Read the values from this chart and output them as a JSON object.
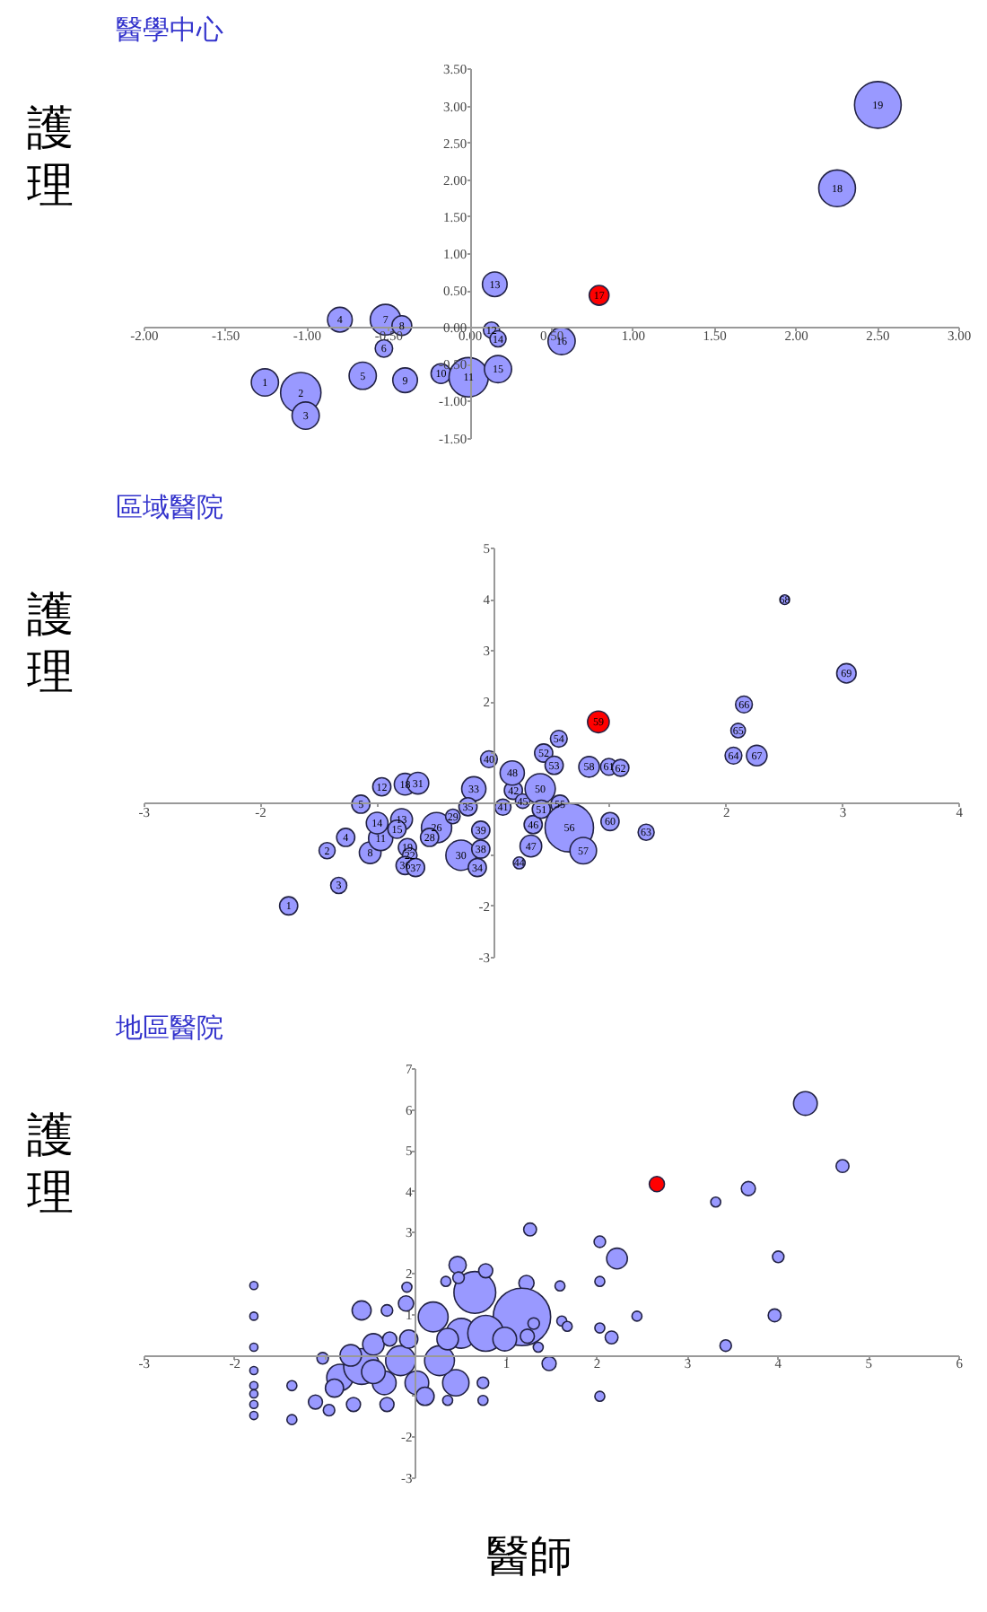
{
  "chart_data": [
    {
      "type": "bubble",
      "title": "醫學中心",
      "ylabel": "護理",
      "marker": "circle",
      "grid": false,
      "xlim": [
        -2,
        3
      ],
      "ylim": [
        -1.5,
        3.5
      ],
      "xticks": [
        {
          "value": -2,
          "label": "-2.00"
        },
        {
          "value": -1.5,
          "label": "-1.50"
        },
        {
          "value": -1,
          "label": "-1.00"
        },
        {
          "value": -0.5,
          "label": "-0.50"
        },
        {
          "value": 0,
          "label": "0.00"
        },
        {
          "value": 0.5,
          "label": "0.50"
        },
        {
          "value": 1,
          "label": "1.00"
        },
        {
          "value": 1.5,
          "label": "1.50"
        },
        {
          "value": 2,
          "label": "2.00"
        },
        {
          "value": 2.5,
          "label": "2.50"
        },
        {
          "value": 3,
          "label": "3.00"
        }
      ],
      "yticks": [
        {
          "value": -1.5,
          "label": "-1.50"
        },
        {
          "value": -1,
          "label": "-1.00"
        },
        {
          "value": -0.5,
          "label": "-0.50"
        },
        {
          "value": 0,
          "label": "0.00"
        },
        {
          "value": 0.5,
          "label": "0.50"
        },
        {
          "value": 1,
          "label": "1.00"
        },
        {
          "value": 1.5,
          "label": "1.50"
        },
        {
          "value": 2,
          "label": "2.00"
        },
        {
          "value": 2.5,
          "label": "2.50"
        },
        {
          "value": 3,
          "label": "3.00"
        },
        {
          "value": 3.5,
          "label": "3.50"
        }
      ],
      "series": [
        {
          "color": "#9999ff",
          "x": [
            -1.26,
            -1.04,
            -1.01,
            -0.8,
            -0.66,
            -0.53,
            -0.52,
            -0.42,
            -0.4,
            -0.18,
            -0.01,
            0.13,
            0.15,
            0.17,
            0.17,
            0.56,
            2.25,
            2.5
          ],
          "values": [
            -0.74,
            -0.88,
            -1.19,
            0.11,
            -0.65,
            -0.28,
            0.11,
            0.03,
            -0.71,
            -0.62,
            -0.67,
            -0.03,
            0.59,
            -0.15,
            -0.56,
            -0.18,
            1.89,
            3.02
          ],
          "sizes": [
            0.34,
            0.75,
            0.34,
            0.28,
            0.34,
            0.14,
            0.43,
            0.18,
            0.28,
            0.18,
            0.71,
            0.12,
            0.28,
            0.12,
            0.34,
            0.34,
            0.62,
            1
          ]
        },
        {
          "color": "#ff0000",
          "x": [
            0.79
          ],
          "values": [
            0.44
          ],
          "sizes": [
            0.18
          ]
        }
      ],
      "annotations": [
        {
          "text": "1",
          "x": -1.26,
          "y": -0.74
        },
        {
          "text": "2",
          "x": -1.04,
          "y": -0.88
        },
        {
          "text": "3",
          "x": -1.01,
          "y": -1.19
        },
        {
          "text": "4",
          "x": -0.8,
          "y": 0.11
        },
        {
          "text": "5",
          "x": -0.66,
          "y": -0.65
        },
        {
          "text": "6",
          "x": -0.53,
          "y": -0.28
        },
        {
          "text": "7",
          "x": -0.52,
          "y": 0.11
        },
        {
          "text": "8",
          "x": -0.42,
          "y": 0.03
        },
        {
          "text": "9",
          "x": -0.4,
          "y": -0.71
        },
        {
          "text": "10",
          "x": -0.18,
          "y": -0.62
        },
        {
          "text": "11",
          "x": -0.01,
          "y": -0.67
        },
        {
          "text": "12",
          "x": 0.13,
          "y": -0.03
        },
        {
          "text": "13",
          "x": 0.15,
          "y": 0.59
        },
        {
          "text": "14",
          "x": 0.17,
          "y": -0.15
        },
        {
          "text": "15",
          "x": 0.17,
          "y": -0.56
        },
        {
          "text": "16",
          "x": 0.56,
          "y": -0.18
        },
        {
          "text": "17",
          "x": 0.79,
          "y": 0.44
        },
        {
          "text": "18",
          "x": 2.25,
          "y": 1.89
        },
        {
          "text": "19",
          "x": 2.5,
          "y": 3.02
        }
      ]
    },
    {
      "type": "bubble",
      "title": "區域醫院",
      "ylabel": "護理",
      "marker": "circle",
      "grid": false,
      "xlim": [
        -3,
        4
      ],
      "ylim": [
        -3,
        5
      ],
      "xticks": [
        -3,
        -2,
        {
          "value": -1,
          "label": null
        },
        {
          "value": 0,
          "label": null
        },
        {
          "value": 1,
          "label": null
        },
        2,
        3,
        4
      ],
      "yticks": [
        -3,
        -2,
        {
          "value": -1,
          "label": null
        },
        {
          "value": 0,
          "label": null
        },
        {
          "value": 1,
          "label": null
        },
        2,
        3,
        4,
        5
      ],
      "series": [
        {
          "color": "#9999ff",
          "x": [
            -1.76,
            -1.43,
            -1.33,
            -1.27,
            -1.14,
            -1.06,
            -0.97,
            -0.96,
            -0.79,
            -1.0,
            -0.83,
            -0.76,
            -0.74,
            -0.72,
            -0.65,
            -0.76,
            -0.67,
            -0.49,
            -0.55,
            -0.35,
            -0.28,
            -0.17,
            -0.14,
            -0.22,
            -0.11,
            -0.11,
            -0.04,
            0.08,
            0.17,
            0.25,
            0.22,
            0.34,
            0.32,
            0.16,
            0.4,
            0.41,
            0.43,
            0.52,
            0.56,
            0.57,
            0.65,
            0.77,
            0.82,
            1.0,
            0.99,
            1.09,
            1.31,
            2.06,
            2.1,
            2.15,
            2.26,
            2.5,
            3.03
          ],
          "values": [
            -1.99,
            -0.91,
            -1.59,
            -0.65,
            0.0,
            -0.95,
            -0.67,
            0.34,
            -0.3,
            -0.37,
            -0.49,
            0.39,
            -0.85,
            -1.0,
            0.41,
            -1.2,
            -1.24,
            -0.46,
            -0.65,
            -0.24,
            -1.0,
            0.3,
            -1.24,
            -0.05,
            -0.88,
            -0.51,
            0.88,
            -0.06,
            0.27,
            0.06,
            -1.15,
            -0.4,
            -0.82,
            0.61,
            0.3,
            -0.1,
            1.0,
            0.76,
            1.28,
            0.0,
            -0.46,
            -0.91,
            0.73,
            -0.34,
            0.73,
            0.71,
            -0.55,
            0.95,
            1.44,
            1.95,
            0.95,
            4.0,
            2.56
          ],
          "sizes": [
            0.14,
            0.11,
            0.11,
            0.14,
            0.14,
            0.2,
            0.25,
            0.14,
            0.2,
            0.2,
            0.14,
            0.2,
            0.14,
            0.09,
            0.2,
            0.14,
            0.14,
            0.39,
            0.14,
            0.09,
            0.39,
            0.25,
            0.14,
            0.14,
            0.14,
            0.14,
            0.12,
            0.11,
            0.14,
            0.09,
            0.06,
            0.14,
            0.2,
            0.25,
            0.39,
            0.14,
            0.14,
            0.14,
            0.12,
            0.14,
            1,
            0.3,
            0.18,
            0.14,
            0.12,
            0.12,
            0.11,
            0.12,
            0.09,
            0.12,
            0.18,
            0.04,
            0.16
          ]
        },
        {
          "color": "#ff0000",
          "x": [
            0.9
          ],
          "values": [
            1.61
          ],
          "sizes": [
            0.2
          ]
        }
      ],
      "annotations": [
        {
          "text": "1",
          "x": -1.76,
          "y": -1.99
        },
        {
          "text": "2",
          "x": -1.43,
          "y": -0.91
        },
        {
          "text": "3",
          "x": -1.33,
          "y": -1.59
        },
        {
          "text": "4",
          "x": -1.27,
          "y": -0.65
        },
        {
          "text": "5",
          "x": -1.14,
          "y": 0.0
        },
        {
          "text": "8",
          "x": -1.06,
          "y": -0.95
        },
        {
          "text": "11",
          "x": -0.97,
          "y": -0.67
        },
        {
          "text": "12",
          "x": -0.96,
          "y": 0.34
        },
        {
          "text": "13",
          "x": -0.79,
          "y": -0.3
        },
        {
          "text": "14",
          "x": -1.0,
          "y": -0.37
        },
        {
          "text": "15",
          "x": -0.83,
          "y": -0.49
        },
        {
          "text": "18",
          "x": -0.76,
          "y": 0.39
        },
        {
          "text": "19",
          "x": -0.74,
          "y": -0.85
        },
        {
          "text": "22",
          "x": -0.72,
          "y": -1.0
        },
        {
          "text": "31",
          "x": -0.65,
          "y": 0.41
        },
        {
          "text": "36",
          "x": -0.76,
          "y": -1.2
        },
        {
          "text": "37",
          "x": -0.67,
          "y": -1.24
        },
        {
          "text": "26",
          "x": -0.49,
          "y": -0.46
        },
        {
          "text": "28",
          "x": -0.55,
          "y": -0.65
        },
        {
          "text": "29",
          "x": -0.35,
          "y": -0.24
        },
        {
          "text": "30",
          "x": -0.28,
          "y": -1.0
        },
        {
          "text": "33",
          "x": -0.17,
          "y": 0.3
        },
        {
          "text": "34",
          "x": -0.14,
          "y": -1.24
        },
        {
          "text": "35",
          "x": -0.22,
          "y": -0.05
        },
        {
          "text": "38",
          "x": -0.11,
          "y": -0.88
        },
        {
          "text": "39",
          "x": -0.11,
          "y": -0.51
        },
        {
          "text": "40",
          "x": -0.04,
          "y": 0.88
        },
        {
          "text": "41",
          "x": 0.08,
          "y": -0.06
        },
        {
          "text": "42",
          "x": 0.17,
          "y": 0.27
        },
        {
          "text": "45",
          "x": 0.25,
          "y": 0.06
        },
        {
          "text": "44",
          "x": 0.22,
          "y": -1.15
        },
        {
          "text": "46",
          "x": 0.34,
          "y": -0.4
        },
        {
          "text": "47",
          "x": 0.32,
          "y": -0.82
        },
        {
          "text": "48",
          "x": 0.16,
          "y": 0.61
        },
        {
          "text": "50",
          "x": 0.4,
          "y": 0.3
        },
        {
          "text": "51",
          "x": 0.41,
          "y": -0.1
        },
        {
          "text": "52",
          "x": 0.43,
          "y": 1.0
        },
        {
          "text": "53",
          "x": 0.52,
          "y": 0.76
        },
        {
          "text": "54",
          "x": 0.56,
          "y": 1.28
        },
        {
          "text": "55",
          "x": 0.57,
          "y": 0.0
        },
        {
          "text": "56",
          "x": 0.65,
          "y": -0.46
        },
        {
          "text": "57",
          "x": 0.77,
          "y": -0.91
        },
        {
          "text": "58",
          "x": 0.82,
          "y": 0.73
        },
        {
          "text": "59",
          "x": 0.9,
          "y": 1.61
        },
        {
          "text": "60",
          "x": 1.0,
          "y": -0.34
        },
        {
          "text": "61",
          "x": 0.99,
          "y": 0.73
        },
        {
          "text": "62",
          "x": 1.09,
          "y": 0.71
        },
        {
          "text": "63",
          "x": 1.31,
          "y": -0.55
        },
        {
          "text": "64",
          "x": 2.06,
          "y": 0.95
        },
        {
          "text": "65",
          "x": 2.1,
          "y": 1.44
        },
        {
          "text": "66",
          "x": 2.15,
          "y": 1.95
        },
        {
          "text": "67",
          "x": 2.26,
          "y": 0.95
        },
        {
          "text": "68",
          "x": 2.5,
          "y": 4.0
        },
        {
          "text": "69",
          "x": 3.03,
          "y": 2.56
        }
      ]
    },
    {
      "type": "bubble",
      "title": "地區醫院",
      "ylabel": "護理",
      "xlabel": "醫師",
      "marker": "circle",
      "grid": false,
      "xlim": [
        -3,
        6
      ],
      "ylim": [
        -3,
        7
      ],
      "xticks": [
        -3,
        -2,
        {
          "value": -1,
          "label": null
        },
        {
          "value": 0,
          "label": null
        },
        1,
        2,
        3,
        4,
        5,
        6
      ],
      "yticks": [
        -3,
        -2,
        {
          "value": -1,
          "label": null
        },
        {
          "value": 0,
          "label": null
        },
        1,
        2,
        3,
        4,
        5,
        6,
        7
      ],
      "series": [
        {
          "color": "#9999ff",
          "x": [
            4.3,
            4.71,
            3.67,
            3.31,
            1.26,
            2.03,
            2.22,
            4.0,
            3.96,
            3.42,
            2.44,
            2.03,
            2.03,
            2.16,
            2.03,
            1.59,
            1.61,
            1.67,
            1.47,
            1.22,
            1.17,
            0.65,
            0.77,
            0.46,
            0.47,
            0.33,
            -0.1,
            -0.6,
            -0.32,
            -0.11,
            0.19,
            0.5,
            0.77,
            0.44,
            0.74,
            0.35,
            0.74,
            1.35,
            -1.79,
            -1.79,
            -1.79,
            -1.79,
            -1.79,
            -1.79,
            -1.79,
            -1.79,
            -1.37,
            -1.37,
            -1.03,
            -1.11,
            -0.96,
            -0.84,
            -0.69,
            -0.6,
            -0.47,
            -0.35,
            -0.32,
            -0.17,
            -0.08,
            0.01,
            0.1,
            0.26,
            -0.72,
            -0.9,
            -0.29,
            -0.47,
            0.35,
            0.98,
            1.23,
            1.3
          ],
          "values": [
            6.16,
            4.63,
            4.08,
            3.75,
            3.08,
            2.78,
            2.37,
            2.41,
            0.98,
            0.24,
            0.96,
            1.81,
            0.67,
            0.44,
            -1.0,
            1.7,
            0.84,
            0.71,
            -0.2,
            1.77,
            0.94,
            1.54,
            2.07,
            2.21,
            1.9,
            1.81,
            1.67,
            1.1,
            1.1,
            1.27,
            0.94,
            0.54,
            0.54,
            -0.67,
            -0.67,
            -1.1,
            -1.1,
            0.2,
            1.71,
            0.96,
            0.2,
            -0.37,
            -0.74,
            -0.94,
            -1.2,
            -1.47,
            -0.74,
            -1.57,
            -0.07,
            -1.14,
            -1.34,
            -0.54,
            -1.2,
            -0.27,
            0.27,
            -0.67,
            -1.2,
            -0.13,
            0.4,
            -0.67,
            -1.0,
            -0.13,
            0.0,
            -0.8,
            0.4,
            -0.4,
            0.4,
            0.4,
            0.47,
            0.78
          ],
          "sizes": [
            0.17,
            0.05,
            0.06,
            0.03,
            0.05,
            0.04,
            0.13,
            0.04,
            0.05,
            0.04,
            0.03,
            0.03,
            0.03,
            0.05,
            0.03,
            0.03,
            0.03,
            0.03,
            0.06,
            0.07,
            1,
            0.53,
            0.06,
            0.09,
            0.04,
            0.03,
            0.03,
            0.11,
            0.04,
            0.07,
            0.27,
            0.27,
            0.39,
            0.21,
            0.04,
            0.03,
            0.03,
            0.03,
            0.02,
            0.02,
            0.02,
            0.02,
            0.02,
            0.02,
            0.02,
            0.02,
            0.03,
            0.03,
            0.04,
            0.06,
            0.04,
            0.21,
            0.06,
            0.39,
            0.14,
            0.17,
            0.06,
            0.27,
            0.1,
            0.17,
            0.1,
            0.27,
            0.14,
            0.1,
            0.06,
            0.17,
            0.14,
            0.17,
            0.06,
            0.04
          ]
        },
        {
          "color": "#ff0000",
          "x": [
            2.66
          ],
          "values": [
            4.19
          ],
          "sizes": [
            0.07
          ]
        }
      ]
    }
  ]
}
